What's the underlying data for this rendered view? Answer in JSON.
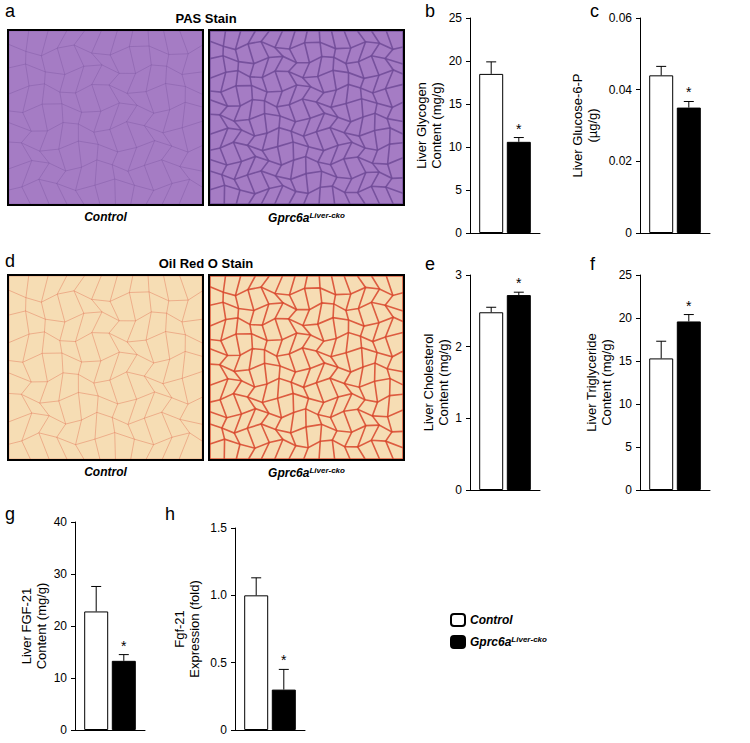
{
  "chart_data": [
    {
      "type": "bar",
      "panel": "b",
      "y_label": "Liver Glycogen\nContent (mg/g)",
      "categories": [
        null
      ],
      "series": [
        {
          "name": "Control",
          "color": "#ffffff",
          "values": [
            18.5
          ],
          "errors": [
            1.4
          ]
        },
        {
          "name": "Gprc6a Liver-cko",
          "color": "#000000",
          "values": [
            10.6
          ],
          "errors": [
            0.5
          ],
          "annotations": [
            "*"
          ]
        }
      ],
      "ylim": [
        0,
        25
      ],
      "yticks": [
        0,
        5,
        10,
        15,
        20,
        25
      ],
      "grid": false,
      "tick_labels": "y"
    },
    {
      "type": "bar",
      "panel": "c",
      "y_label": "Liver Glucose-6-P\n(µg/g)",
      "categories": [
        null
      ],
      "series": [
        {
          "name": "Control",
          "color": "#ffffff",
          "values": [
            0.044
          ],
          "errors": [
            0.0025
          ]
        },
        {
          "name": "Gprc6a Liver-cko",
          "color": "#000000",
          "values": [
            0.035
          ],
          "errors": [
            0.0017
          ],
          "annotations": [
            "*"
          ]
        }
      ],
      "ylim": [
        0,
        0.06
      ],
      "yticks": [
        0,
        0.02,
        0.04,
        0.06
      ],
      "grid": false,
      "tick_labels": "y"
    },
    {
      "type": "bar",
      "panel": "e",
      "y_label": "Liver Cholesterol\nContent (mg/g)",
      "categories": [
        null
      ],
      "series": [
        {
          "name": "Control",
          "color": "#ffffff",
          "values": [
            2.48
          ],
          "errors": [
            0.07
          ]
        },
        {
          "name": "Gprc6a Liver-cko",
          "color": "#000000",
          "values": [
            2.72
          ],
          "errors": [
            0.04
          ],
          "annotations": [
            "*"
          ]
        }
      ],
      "ylim": [
        0,
        3
      ],
      "yticks": [
        0,
        1,
        2,
        3
      ],
      "grid": false,
      "tick_labels": "y"
    },
    {
      "type": "bar",
      "panel": "f",
      "y_label": "Liver Triglyceride\nContent (mg/g)",
      "categories": [
        null
      ],
      "series": [
        {
          "name": "Control",
          "color": "#ffffff",
          "values": [
            15.3
          ],
          "errors": [
            2.0
          ]
        },
        {
          "name": "Gprc6a Liver-cko",
          "color": "#000000",
          "values": [
            19.6
          ],
          "errors": [
            0.8
          ],
          "annotations": [
            "*"
          ]
        }
      ],
      "ylim": [
        0,
        25
      ],
      "yticks": [
        0,
        5,
        10,
        15,
        20,
        25
      ],
      "grid": false,
      "tick_labels": "y"
    },
    {
      "type": "bar",
      "panel": "g",
      "y_label": "Liver FGF-21\nContent (mg/g)",
      "categories": [
        null
      ],
      "series": [
        {
          "name": "Control",
          "color": "#ffffff",
          "values": [
            22.8
          ],
          "errors": [
            4.8
          ]
        },
        {
          "name": "Gprc6a Liver-cko",
          "color": "#000000",
          "values": [
            13.3
          ],
          "errors": [
            1.2
          ],
          "annotations": [
            "*"
          ]
        }
      ],
      "ylim": [
        0,
        40
      ],
      "yticks": [
        0,
        10,
        20,
        30,
        40
      ],
      "grid": false,
      "tick_labels": "y"
    },
    {
      "type": "bar",
      "panel": "h",
      "y_label": "Fgf-21\nExpression (fold)",
      "categories": [
        null
      ],
      "series": [
        {
          "name": "Control",
          "color": "#ffffff",
          "values": [
            1.0
          ],
          "errors": [
            0.13
          ]
        },
        {
          "name": "Gprc6a Liver-cko",
          "color": "#000000",
          "values": [
            0.3
          ],
          "errors": [
            0.15
          ],
          "annotations": [
            "*"
          ]
        }
      ],
      "ylim": [
        0,
        1.5
      ],
      "yticks": [
        0,
        0.5,
        {
          "value": 1,
          "label": "1.0"
        },
        1.5
      ],
      "grid": false,
      "tick_labels": "y",
      "legend": "right"
    }
  ],
  "images": [
    {
      "panel": "a",
      "title": "PAS Stain",
      "labels": [
        "Control",
        "Gprc6a Liver-cko"
      ],
      "colors": [
        "#a57cc4",
        "#6e4a96"
      ]
    },
    {
      "panel": "d",
      "title": "Oil Red O Stain",
      "labels": [
        "Control",
        "Gprc6a Liver-cko"
      ],
      "colors": [
        "#f6ddb4",
        "#d8452c"
      ]
    }
  ]
}
